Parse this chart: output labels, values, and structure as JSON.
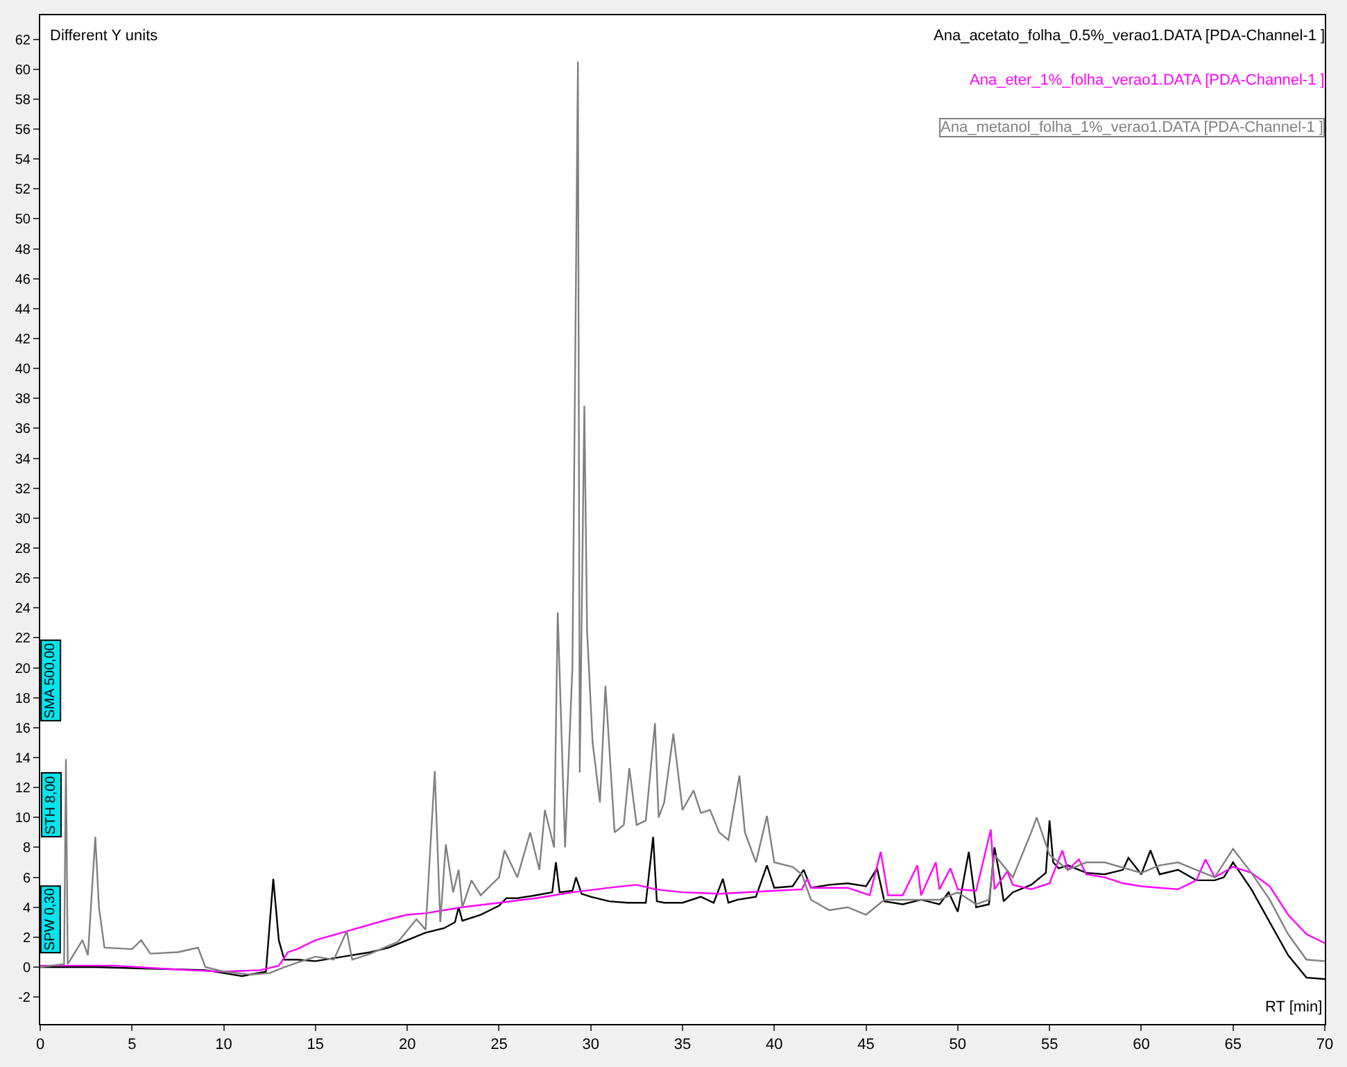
{
  "chart_data": {
    "type": "line",
    "xlabel": "RT [min]",
    "annotations": [
      "Different Y units",
      "SPW 0,30",
      "STH 8,00",
      "SMA 500,00"
    ],
    "xlim": [
      0,
      70
    ],
    "ylim": [
      -3.8,
      63.6
    ],
    "xticks": [
      0,
      5,
      10,
      15,
      20,
      25,
      30,
      35,
      40,
      45,
      50,
      55,
      60,
      65,
      70
    ],
    "yticks": [
      -2,
      0,
      2,
      4,
      6,
      8,
      10,
      12,
      14,
      16,
      18,
      20,
      22,
      24,
      26,
      28,
      30,
      32,
      34,
      36,
      38,
      40,
      42,
      44,
      46,
      48,
      50,
      52,
      54,
      56,
      58,
      60,
      62
    ],
    "marker": "none",
    "line_style": "solid",
    "series": [
      {
        "name": "Ana_acetato_folha_0.5%_verao1.DATA [PDA-Channel-1 ]",
        "color": "#000000",
        "x": [
          0,
          3,
          6,
          9,
          10,
          11,
          12.3,
          12.7,
          13,
          13.3,
          14,
          15,
          16,
          18,
          19,
          20,
          21,
          22,
          22.6,
          22.8,
          23,
          24,
          25,
          25.4,
          26,
          27,
          27.9,
          28.1,
          28.3,
          29,
          29.2,
          29.5,
          30,
          31,
          32,
          33,
          33.4,
          33.6,
          34,
          35,
          36,
          36.7,
          37.2,
          37.5,
          38,
          39,
          39.6,
          40,
          41,
          41.6,
          42,
          43,
          44,
          45,
          45.6,
          46,
          47,
          48,
          49,
          49.5,
          50,
          50.6,
          51,
          51.7,
          52,
          52.3,
          52.5,
          53,
          54,
          54.8,
          55,
          55.2,
          55.5,
          56,
          57,
          58,
          59,
          59.3,
          60,
          60.5,
          61,
          62,
          63,
          64,
          64.5,
          65,
          66,
          67,
          68,
          69,
          70
        ],
        "values": [
          0,
          0,
          -0.1,
          -0.2,
          -0.4,
          -0.6,
          -0.3,
          5.9,
          1.8,
          0.5,
          0.5,
          0.4,
          0.6,
          1.0,
          1.3,
          1.8,
          2.3,
          2.6,
          3.0,
          4.0,
          3.1,
          3.5,
          4.1,
          4.6,
          4.6,
          4.8,
          5.0,
          7.0,
          5.0,
          5.1,
          6.0,
          4.9,
          4.7,
          4.4,
          4.3,
          4.3,
          8.7,
          4.4,
          4.3,
          4.3,
          4.7,
          4.3,
          5.9,
          4.3,
          4.5,
          4.7,
          6.8,
          5.3,
          5.4,
          6.5,
          5.3,
          5.5,
          5.6,
          5.4,
          6.6,
          4.4,
          4.2,
          4.5,
          4.2,
          5.0,
          3.7,
          7.7,
          4.0,
          4.2,
          8.0,
          6.0,
          4.4,
          5.0,
          5.5,
          6.3,
          9.8,
          7.0,
          6.6,
          6.8,
          6.3,
          6.2,
          6.5,
          7.3,
          6.2,
          7.8,
          6.2,
          6.5,
          5.8,
          5.8,
          6.0,
          7.0,
          5.2,
          3.0,
          0.8,
          -0.7,
          -0.8
        ]
      },
      {
        "name": "Ana_eter_1%_folha_verao1.DATA [PDA-Channel-1 ]",
        "color": "#ff00ff",
        "x": [
          0,
          4,
          8,
          10,
          12,
          13,
          13.5,
          14,
          15,
          17,
          19,
          20,
          21,
          22,
          23,
          25,
          27,
          29,
          31,
          32.5,
          33.5,
          35,
          37,
          40,
          41.5,
          41.8,
          42,
          44,
          45.2,
          45.8,
          46.2,
          47,
          47.8,
          48,
          48.8,
          49,
          49.6,
          50,
          51,
          51.8,
          52,
          52.7,
          53,
          54,
          55,
          55.7,
          56,
          56.6,
          57,
          58,
          59,
          60,
          61,
          62,
          63,
          63.5,
          64,
          65,
          66,
          67,
          68,
          69,
          70
        ],
        "values": [
          0.1,
          0.1,
          -0.2,
          -0.3,
          -0.2,
          0.1,
          1.0,
          1.2,
          1.8,
          2.5,
          3.2,
          3.5,
          3.6,
          3.8,
          4.0,
          4.3,
          4.6,
          5.0,
          5.3,
          5.5,
          5.2,
          5.0,
          4.9,
          5.1,
          5.2,
          5.9,
          5.3,
          5.3,
          4.8,
          7.7,
          4.8,
          4.8,
          6.8,
          4.8,
          7.0,
          5.2,
          6.6,
          5.2,
          5.1,
          9.2,
          5.2,
          6.4,
          5.5,
          5.2,
          5.6,
          7.8,
          6.5,
          7.2,
          6.2,
          6.0,
          5.6,
          5.4,
          5.3,
          5.2,
          5.8,
          7.2,
          6.0,
          6.7,
          6.3,
          5.4,
          3.5,
          2.2,
          1.6
        ]
      },
      {
        "name": "Ana_metanol_folha_1%_verao1.DATA [PDA-Channel-1 ]",
        "color": "#808080",
        "x": [
          0,
          1.3,
          1.4,
          1.5,
          2.3,
          2.6,
          3.0,
          3.2,
          3.5,
          5.0,
          5.5,
          6.0,
          7.5,
          8.6,
          9,
          10,
          11.5,
          12.5,
          13.3,
          14,
          15,
          16,
          16.7,
          17,
          18,
          19.5,
          20.5,
          21,
          21.5,
          21.8,
          22.1,
          22.5,
          22.8,
          23,
          23.5,
          24,
          25,
          25.3,
          26,
          26.7,
          27.2,
          27.5,
          28,
          28.2,
          28.6,
          29.0,
          29.3,
          29.4,
          29.65,
          29.8,
          30.1,
          30.5,
          30.8,
          31.3,
          31.8,
          32.1,
          32.5,
          33,
          33.5,
          33.7,
          34,
          34.5,
          35,
          35.6,
          36,
          36.5,
          37,
          37.5,
          38.1,
          38.4,
          39,
          39.6,
          40,
          41,
          41.5,
          42,
          43,
          44,
          45,
          46,
          47,
          48,
          49,
          50,
          51,
          51.7,
          52,
          53,
          54,
          54.3,
          55,
          56,
          57,
          58,
          60,
          61,
          62,
          63,
          64,
          65,
          66,
          67,
          68,
          69,
          70
        ],
        "values": [
          0,
          0.2,
          13.9,
          0.2,
          1.8,
          0.8,
          8.7,
          4.0,
          1.3,
          1.2,
          1.8,
          0.9,
          1.0,
          1.3,
          0,
          -0.3,
          -0.5,
          -0.4,
          0,
          0.3,
          0.7,
          0.5,
          2.4,
          0.5,
          0.9,
          1.7,
          3.2,
          2.5,
          13.1,
          3.0,
          8.2,
          5.0,
          6.5,
          4.0,
          5.8,
          4.8,
          6.0,
          7.8,
          6.0,
          9.0,
          6.5,
          10.5,
          8.0,
          23.7,
          8.0,
          20.0,
          60.5,
          13.0,
          37.5,
          22.5,
          15.0,
          11.0,
          18.8,
          9.0,
          9.5,
          13.3,
          9.5,
          9.8,
          16.3,
          10.0,
          11.0,
          15.6,
          10.5,
          11.8,
          10.3,
          10.5,
          9.0,
          8.5,
          12.8,
          9.0,
          7.0,
          10.1,
          7.0,
          6.7,
          6.2,
          4.5,
          3.8,
          4.0,
          3.5,
          4.5,
          4.5,
          4.5,
          4.5,
          5.0,
          4.2,
          4.5,
          7.5,
          6.0,
          9.0,
          10.0,
          7.5,
          6.5,
          7.0,
          7.0,
          6.3,
          6.8,
          7.0,
          6.5,
          6.0,
          7.9,
          6.3,
          4.5,
          2.2,
          0.5,
          0.4
        ]
      }
    ]
  }
}
